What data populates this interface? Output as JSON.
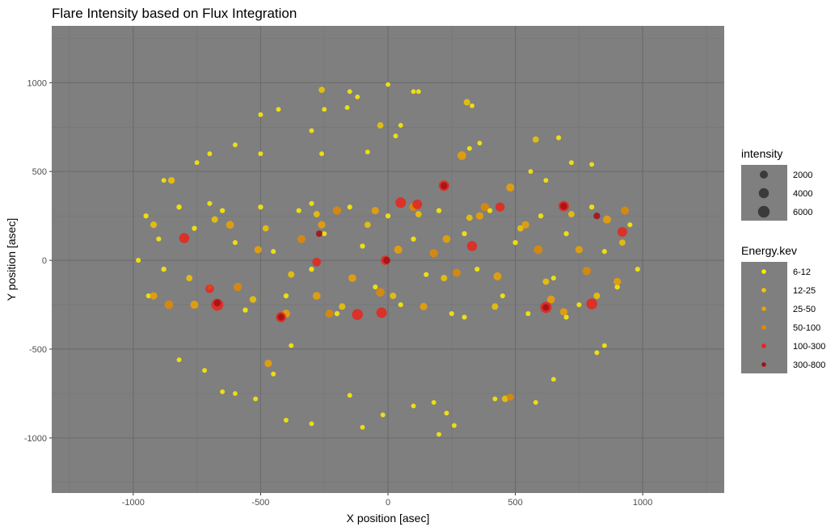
{
  "chart_data": {
    "type": "scatter",
    "title": "Flare Intensity based on Flux Integration",
    "xlabel": "X position [asec]",
    "ylabel": "Y position [asec]",
    "xlim": [
      -1320,
      1320
    ],
    "ylim": [
      -1310,
      1320
    ],
    "x_ticks": [
      -1000,
      -500,
      0,
      500,
      1000
    ],
    "y_ticks": [
      1000,
      500,
      0,
      -500,
      -1000
    ],
    "x_tick_labels": [
      "-1000",
      "-500",
      "0",
      "500",
      "1000"
    ],
    "y_tick_labels": [
      "1000",
      "500",
      "0",
      "-500",
      "-1000"
    ],
    "grid": true,
    "panel_background": "#7f7f7f",
    "legend_position": "right",
    "legend_size": {
      "title": "intensity",
      "items": [
        {
          "label": "2000",
          "value": 2000
        },
        {
          "label": "4000",
          "value": 4000
        },
        {
          "label": "6000",
          "value": 6000
        }
      ]
    },
    "legend_color": {
      "title": "Energy.kev",
      "items": [
        {
          "label": "6-12",
          "color": "#ffee00"
        },
        {
          "label": "12-25",
          "color": "#f2c500"
        },
        {
          "label": "25-50",
          "color": "#eda200"
        },
        {
          "label": "50-100",
          "color": "#e08a00"
        },
        {
          "label": "100-300",
          "color": "#e8241c"
        },
        {
          "label": "300-800",
          "color": "#a40f14"
        }
      ]
    },
    "series": [
      {
        "name": "6-12",
        "color": "#ffee00",
        "points": [
          [
            -950,
            250,
            300
          ],
          [
            -900,
            120,
            250
          ],
          [
            -880,
            -50,
            300
          ],
          [
            -940,
            -200,
            250
          ],
          [
            -820,
            300,
            350
          ],
          [
            -760,
            180,
            300
          ],
          [
            -700,
            -150,
            250
          ],
          [
            -650,
            280,
            300
          ],
          [
            -600,
            100,
            250
          ],
          [
            -560,
            -280,
            300
          ],
          [
            -500,
            300,
            300
          ],
          [
            -450,
            50,
            250
          ],
          [
            -400,
            -200,
            300
          ],
          [
            -350,
            280,
            250
          ],
          [
            -300,
            -50,
            300
          ],
          [
            -250,
            150,
            250
          ],
          [
            -200,
            -300,
            300
          ],
          [
            -150,
            300,
            250
          ],
          [
            -100,
            80,
            300
          ],
          [
            -50,
            -150,
            250
          ],
          [
            0,
            250,
            300
          ],
          [
            50,
            -250,
            250
          ],
          [
            100,
            120,
            300
          ],
          [
            150,
            -80,
            250
          ],
          [
            200,
            280,
            300
          ],
          [
            250,
            -300,
            250
          ],
          [
            300,
            150,
            300
          ],
          [
            350,
            -50,
            250
          ],
          [
            400,
            280,
            300
          ],
          [
            450,
            -200,
            250
          ],
          [
            500,
            100,
            300
          ],
          [
            550,
            -300,
            250
          ],
          [
            600,
            250,
            300
          ],
          [
            650,
            -100,
            250
          ],
          [
            700,
            150,
            300
          ],
          [
            750,
            -250,
            250
          ],
          [
            800,
            300,
            300
          ],
          [
            850,
            50,
            250
          ],
          [
            900,
            -150,
            300
          ],
          [
            950,
            200,
            250
          ],
          [
            -980,
            0,
            250
          ],
          [
            980,
            -50,
            250
          ],
          [
            -700,
            320,
            250
          ],
          [
            700,
            -320,
            250
          ],
          [
            -300,
            320,
            250
          ],
          [
            300,
            -320,
            250
          ],
          [
            -150,
            950,
            200
          ],
          [
            0,
            990,
            200
          ],
          [
            -500,
            820,
            200
          ],
          [
            -430,
            850,
            200
          ],
          [
            -250,
            850,
            200
          ],
          [
            -160,
            860,
            200
          ],
          [
            100,
            950,
            200
          ],
          [
            50,
            760,
            200
          ],
          [
            -750,
            550,
            200
          ],
          [
            -880,
            450,
            200
          ],
          [
            -600,
            650,
            200
          ],
          [
            -260,
            600,
            200
          ],
          [
            670,
            690,
            250
          ],
          [
            720,
            550,
            200
          ],
          [
            800,
            540,
            200
          ],
          [
            560,
            500,
            200
          ],
          [
            620,
            450,
            200
          ],
          [
            -820,
            -560,
            200
          ],
          [
            -720,
            -620,
            200
          ],
          [
            -600,
            -750,
            200
          ],
          [
            -520,
            -780,
            200
          ],
          [
            -400,
            -900,
            200
          ],
          [
            -300,
            -920,
            200
          ],
          [
            -150,
            -760,
            200
          ],
          [
            -100,
            -940,
            200
          ],
          [
            -20,
            -870,
            200
          ],
          [
            100,
            -820,
            200
          ],
          [
            180,
            -800,
            200
          ],
          [
            200,
            -980,
            200
          ],
          [
            230,
            -860,
            200
          ],
          [
            260,
            -930,
            200
          ],
          [
            650,
            -670,
            200
          ],
          [
            580,
            -800,
            200
          ],
          [
            820,
            -520,
            200
          ],
          [
            850,
            -480,
            200
          ],
          [
            -450,
            -640,
            200
          ],
          [
            -380,
            -480,
            200
          ],
          [
            -650,
            -740,
            200
          ],
          [
            420,
            -780,
            200
          ],
          [
            -700,
            600,
            200
          ],
          [
            -300,
            730,
            200
          ],
          [
            -120,
            920,
            200
          ],
          [
            120,
            950,
            200
          ],
          [
            320,
            630,
            200
          ],
          [
            330,
            870,
            200
          ],
          [
            -80,
            610,
            200
          ],
          [
            30,
            700,
            200
          ],
          [
            360,
            660,
            200
          ],
          [
            -500,
            600,
            200
          ]
        ]
      },
      {
        "name": "12-25",
        "color": "#f2c500",
        "points": [
          [
            -920,
            200,
            1000
          ],
          [
            -780,
            -100,
            800
          ],
          [
            -680,
            230,
            900
          ],
          [
            -530,
            -220,
            1000
          ],
          [
            -480,
            180,
            800
          ],
          [
            -380,
            -80,
            900
          ],
          [
            -280,
            260,
            800
          ],
          [
            -180,
            -260,
            900
          ],
          [
            -80,
            200,
            800
          ],
          [
            20,
            -200,
            900
          ],
          [
            120,
            260,
            800
          ],
          [
            220,
            -100,
            900
          ],
          [
            320,
            240,
            800
          ],
          [
            420,
            -260,
            900
          ],
          [
            520,
            180,
            800
          ],
          [
            620,
            -120,
            900
          ],
          [
            720,
            260,
            800
          ],
          [
            820,
            -200,
            900
          ],
          [
            920,
            100,
            800
          ],
          [
            -850,
            450,
            1000
          ],
          [
            580,
            680,
            800
          ],
          [
            310,
            890,
            900
          ],
          [
            460,
            -780,
            900
          ],
          [
            -30,
            760,
            800
          ],
          [
            -260,
            960,
            800
          ]
        ]
      },
      {
        "name": "25-50",
        "color": "#eda200",
        "points": [
          [
            -920,
            -200,
            1500
          ],
          [
            -760,
            -250,
            2000
          ],
          [
            -620,
            200,
            1800
          ],
          [
            -510,
            60,
            1500
          ],
          [
            -400,
            -300,
            2000
          ],
          [
            -260,
            200,
            1500
          ],
          [
            -140,
            -100,
            1800
          ],
          [
            -50,
            280,
            1500
          ],
          [
            40,
            60,
            2000
          ],
          [
            140,
            -260,
            1500
          ],
          [
            230,
            120,
            1800
          ],
          [
            360,
            250,
            1500
          ],
          [
            430,
            -90,
            2000
          ],
          [
            540,
            200,
            1500
          ],
          [
            640,
            -220,
            1800
          ],
          [
            750,
            60,
            1500
          ],
          [
            860,
            230,
            2000
          ],
          [
            900,
            -120,
            1500
          ],
          [
            290,
            590,
            2500
          ],
          [
            480,
            410,
            2000
          ],
          [
            -470,
            -580,
            1500
          ],
          [
            -280,
            -200,
            1800
          ],
          [
            690,
            -290,
            1500
          ]
        ]
      },
      {
        "name": "50-100",
        "color": "#e08a00",
        "points": [
          [
            -860,
            -250,
            2500
          ],
          [
            -590,
            -150,
            2200
          ],
          [
            -340,
            120,
            2000
          ],
          [
            -200,
            280,
            2200
          ],
          [
            -30,
            -180,
            2500
          ],
          [
            100,
            300,
            2200
          ],
          [
            270,
            -70,
            2000
          ],
          [
            380,
            300,
            2200
          ],
          [
            590,
            60,
            2500
          ],
          [
            780,
            -60,
            2200
          ],
          [
            930,
            280,
            2000
          ],
          [
            480,
            -770,
            1200
          ],
          [
            -230,
            -300,
            2000
          ],
          [
            180,
            40,
            2200
          ]
        ]
      },
      {
        "name": "100-300",
        "color": "#e8241c",
        "points": [
          [
            -800,
            125,
            4000
          ],
          [
            -670,
            -250,
            6500
          ],
          [
            -420,
            -320,
            4000
          ],
          [
            -120,
            -305,
            5000
          ],
          [
            -25,
            -295,
            4500
          ],
          [
            50,
            325,
            4500
          ],
          [
            115,
            315,
            3500
          ],
          [
            220,
            420,
            4500
          ],
          [
            330,
            80,
            4000
          ],
          [
            620,
            -265,
            5500
          ],
          [
            690,
            305,
            4500
          ],
          [
            800,
            -245,
            5000
          ],
          [
            920,
            160,
            3500
          ],
          [
            -10,
            0,
            3000
          ],
          [
            440,
            300,
            3000
          ],
          [
            -700,
            -160,
            2500
          ],
          [
            -280,
            -10,
            2500
          ]
        ]
      },
      {
        "name": "300-800",
        "color": "#a40f14",
        "points": [
          [
            -670,
            -240,
            1200
          ],
          [
            220,
            420,
            1200
          ],
          [
            -5,
            0,
            1200
          ],
          [
            690,
            305,
            1200
          ],
          [
            820,
            250,
            1000
          ],
          [
            -420,
            -320,
            1000
          ],
          [
            620,
            -265,
            1000
          ],
          [
            -270,
            150,
            900
          ]
        ]
      }
    ]
  }
}
